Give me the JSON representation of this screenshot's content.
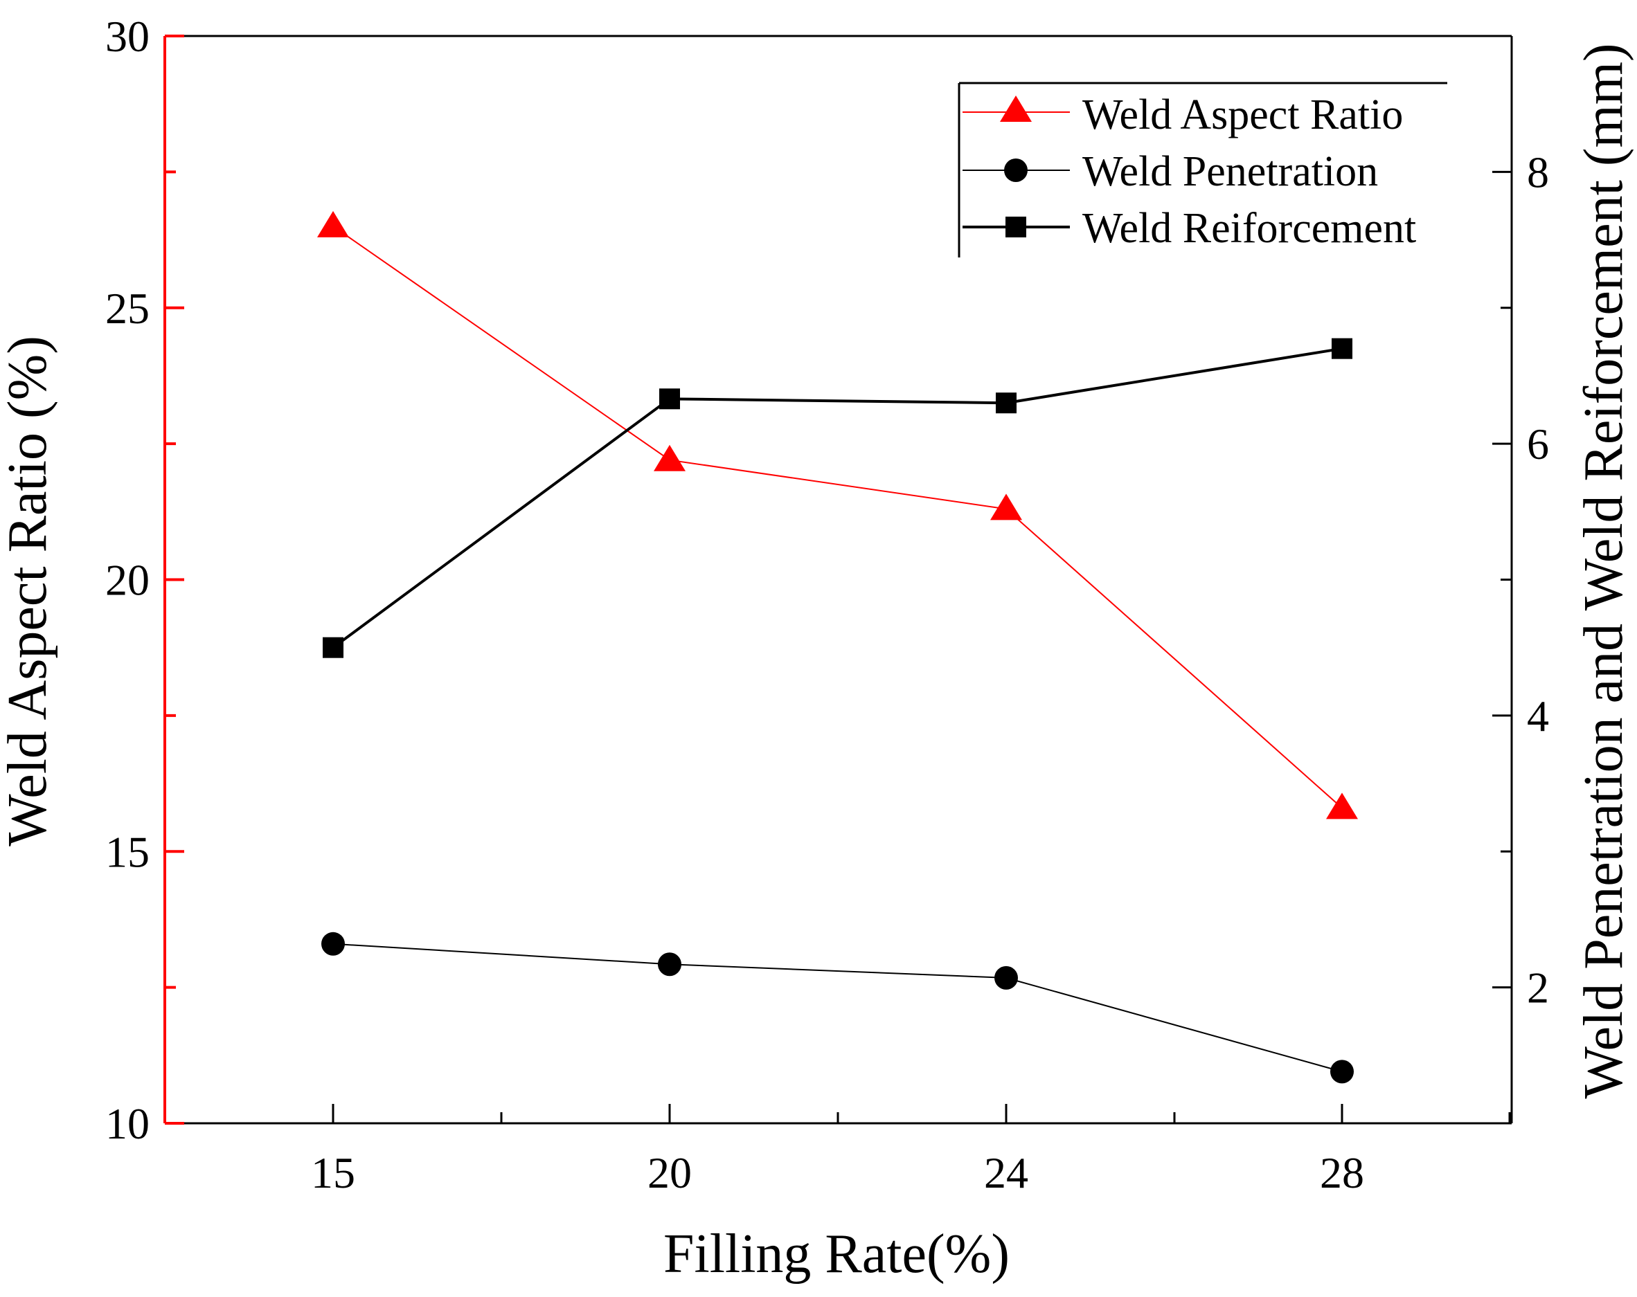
{
  "chart_data": {
    "type": "line",
    "x": [
      15,
      20,
      24,
      28
    ],
    "xlabel": "Filling Rate(%)",
    "x_tick_labels": [
      "15",
      "20",
      "24",
      "28"
    ],
    "left_axis": {
      "label": "Weld Aspect Ratio (%)",
      "range": [
        10,
        30
      ],
      "tick_labels": [
        "10",
        "15",
        "20",
        "25",
        "30"
      ],
      "color": "#ff0000"
    },
    "right_axis": {
      "label": "Weld Penetration and Weld Reiforcement (mm)",
      "range": [
        1,
        9
      ],
      "tick_labels": [
        "2",
        "4",
        "6",
        "8"
      ],
      "color": "#000000"
    },
    "series": [
      {
        "name": "Weld Aspect Ratio",
        "axis": "left",
        "marker": "triangle",
        "color": "#ff0000",
        "values": [
          26.5,
          22.2,
          21.3,
          15.8
        ]
      },
      {
        "name": "Weld Penetration",
        "axis": "right",
        "marker": "circle",
        "color": "#000000",
        "values": [
          2.32,
          2.17,
          2.07,
          1.38
        ]
      },
      {
        "name": "Weld Reiforcement",
        "axis": "right",
        "marker": "square",
        "color": "#000000",
        "values": [
          4.5,
          6.33,
          6.3,
          6.7
        ]
      }
    ],
    "legend_position": "top-right"
  }
}
